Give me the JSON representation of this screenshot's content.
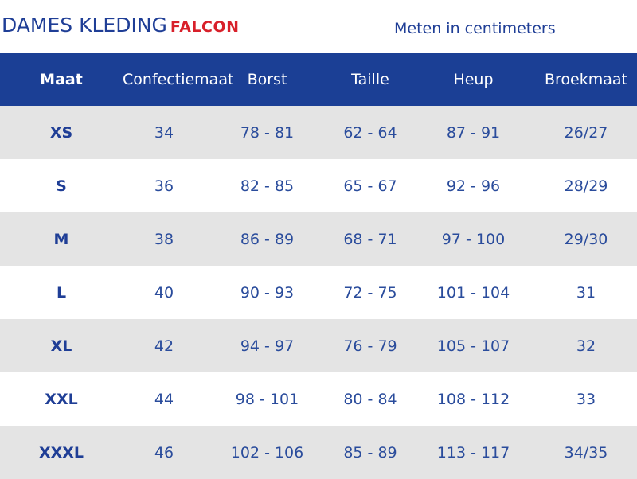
{
  "header": {
    "title": "DAMES KLEDING",
    "brand": "FALCON",
    "units": "Meten in centimeters"
  },
  "colors": {
    "header_bar": "#1b3f95",
    "brand": "#d8202a",
    "text": "#1f3e96",
    "row_shade": "#e4e4e4"
  },
  "table": {
    "columns": [
      "Maat",
      "Confectiemaat",
      "Borst",
      "Taille",
      "Heup",
      "Broekmaat"
    ],
    "rows": [
      [
        "XS",
        "34",
        "78 - 81",
        "62 - 64",
        "87 - 91",
        "26/27"
      ],
      [
        "S",
        "36",
        "82 - 85",
        "65 - 67",
        "92 - 96",
        "28/29"
      ],
      [
        "M",
        "38",
        "86 - 89",
        "68 - 71",
        "97 - 100",
        "29/30"
      ],
      [
        "L",
        "40",
        "90 - 93",
        "72 - 75",
        "101 - 104",
        "31"
      ],
      [
        "XL",
        "42",
        "94 - 97",
        "76 - 79",
        "105 - 107",
        "32"
      ],
      [
        "XXL",
        "44",
        "98 - 101",
        "80 - 84",
        "108 - 112",
        "33"
      ],
      [
        "XXXL",
        "46",
        "102 - 106",
        "85 - 89",
        "113 - 117",
        "34/35"
      ]
    ]
  }
}
